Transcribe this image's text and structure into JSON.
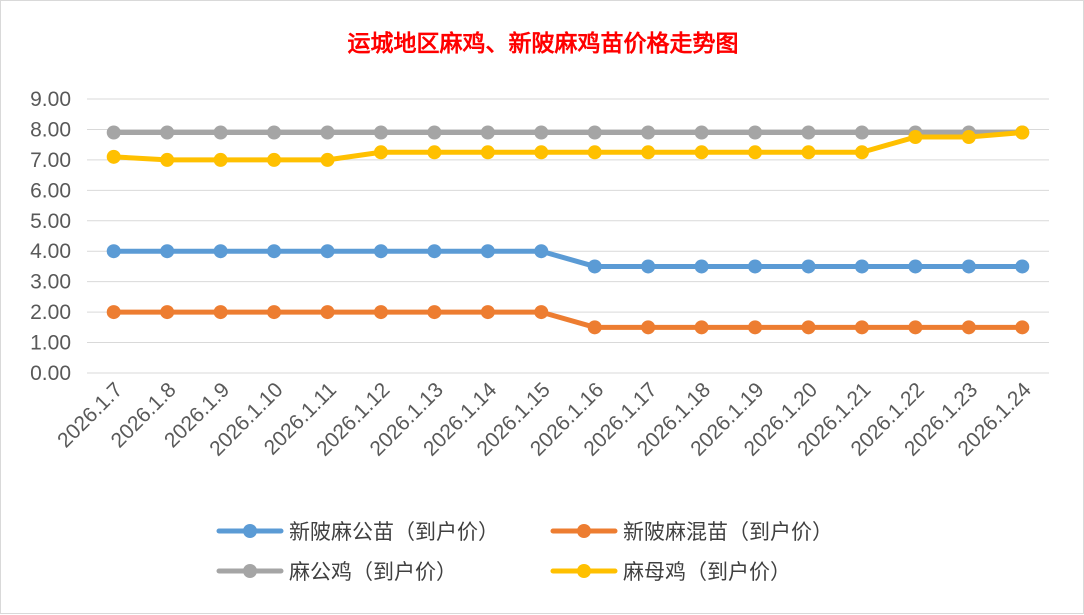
{
  "chart_data": {
    "type": "line",
    "title": "运城地区麻鸡、新陂麻鸡苗价格走势图",
    "title_color": "#ff0000",
    "categories": [
      "2026.1.7",
      "2026.1.8",
      "2026.1.9",
      "2026.1.10",
      "2026.1.11",
      "2026.1.12",
      "2026.1.13",
      "2026.1.14",
      "2026.1.15",
      "2026.1.16",
      "2026.1.17",
      "2026.1.18",
      "2026.1.19",
      "2026.1.20",
      "2026.1.21",
      "2026.1.22",
      "2026.1.23",
      "2026.1.24"
    ],
    "y_ticks": [
      "0.00",
      "1.00",
      "2.00",
      "3.00",
      "4.00",
      "5.00",
      "6.00",
      "7.00",
      "8.00",
      "9.00"
    ],
    "ylim": [
      0,
      9
    ],
    "grid": true,
    "legend_position": "bottom",
    "series": [
      {
        "name": "新陂麻公苗（到户价）",
        "color": "#5b9bd5",
        "values": [
          4.0,
          4.0,
          4.0,
          4.0,
          4.0,
          4.0,
          4.0,
          4.0,
          4.0,
          3.5,
          3.5,
          3.5,
          3.5,
          3.5,
          3.5,
          3.5,
          3.5,
          3.5
        ]
      },
      {
        "name": "新陂麻混苗（到户价）",
        "color": "#ed7d31",
        "values": [
          2.0,
          2.0,
          2.0,
          2.0,
          2.0,
          2.0,
          2.0,
          2.0,
          2.0,
          1.5,
          1.5,
          1.5,
          1.5,
          1.5,
          1.5,
          1.5,
          1.5,
          1.5
        ]
      },
      {
        "name": "麻公鸡（到户价）",
        "color": "#a5a5a5",
        "values": [
          7.9,
          7.9,
          7.9,
          7.9,
          7.9,
          7.9,
          7.9,
          7.9,
          7.9,
          7.9,
          7.9,
          7.9,
          7.9,
          7.9,
          7.9,
          7.9,
          7.9,
          7.9
        ]
      },
      {
        "name": "麻母鸡（到户价）",
        "color": "#ffc000",
        "values": [
          7.1,
          7.0,
          7.0,
          7.0,
          7.0,
          7.25,
          7.25,
          7.25,
          7.25,
          7.25,
          7.25,
          7.25,
          7.25,
          7.25,
          7.25,
          7.75,
          7.75,
          7.9
        ]
      }
    ]
  }
}
